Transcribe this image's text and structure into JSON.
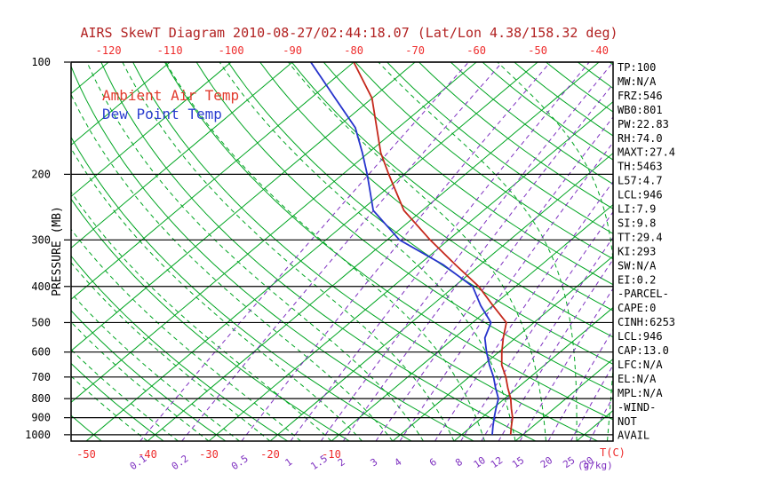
{
  "window": {
    "background": "#ffffff"
  },
  "chart_data": {
    "type": "line",
    "variant": "skewt-log-p",
    "title": "AIRS SkewT Diagram 2010-08-27/02:44:18.07 (Lat/Lon 4.38/158.32 deg)",
    "ylabel": "PRESSURE (MB)",
    "units": {
      "temp": "T(C)",
      "mixing": "(g/kg)"
    },
    "legend": [
      "Ambient Air Temp",
      "Dew Point Temp"
    ],
    "y_axis": {
      "scale": "log",
      "ticks": [
        100,
        200,
        300,
        400,
        500,
        600,
        700,
        800,
        900,
        1000
      ],
      "range": [
        100,
        1040
      ]
    },
    "x_axis_top": {
      "ticks": [
        -120,
        -110,
        -100,
        -90,
        -80,
        -70,
        -60,
        -50,
        -40
      ]
    },
    "x_axis_bottom": {
      "temp_ticks": [
        -50,
        -40,
        -30,
        -20,
        -10
      ],
      "mixing_ratio_ticks": [
        0.1,
        0.2,
        0.5,
        1,
        1.5,
        2,
        3,
        4,
        6,
        8,
        10,
        12,
        15,
        20,
        25,
        30
      ]
    },
    "series": [
      {
        "name": "Ambient Air Temp",
        "color": "#c5281c",
        "pressure_hpa": [
          1000,
          950,
          900,
          850,
          800,
          750,
          700,
          650,
          600,
          550,
          500,
          450,
          400,
          350,
          300,
          250,
          200,
          175,
          150,
          125,
          100
        ],
        "temp_c": [
          18,
          16.5,
          15,
          13,
          11,
          8.5,
          6,
          3,
          0.5,
          -2,
          -4.5,
          -10,
          -16,
          -24,
          -33,
          -43,
          -52.5,
          -58,
          -63.5,
          -70,
          -80
        ]
      },
      {
        "name": "Dew Point Temp",
        "color": "#2633cc",
        "pressure_hpa": [
          1000,
          950,
          900,
          850,
          800,
          750,
          700,
          650,
          600,
          550,
          500,
          450,
          400,
          350,
          300,
          250,
          200,
          175,
          150,
          125,
          100
        ],
        "temp_c": [
          15,
          13.5,
          12,
          10.5,
          9,
          6.5,
          4,
          1,
          -2,
          -5,
          -7,
          -12,
          -17,
          -26,
          -38,
          -48,
          -56,
          -61,
          -67,
          -76,
          -87
        ]
      }
    ]
  },
  "side_panel": {
    "lines": [
      "TP:100",
      "MW:N/A",
      "FRZ:546",
      "WB0:801",
      "PW:22.83",
      "RH:74.0",
      "MAXT:27.4",
      "TH:5463",
      "L57:4.7",
      "LCL:946",
      "LI:7.9",
      "SI:9.8",
      "TT:29.4",
      "KI:293",
      "SW:N/A",
      "EI:0.2",
      "-PARCEL-",
      "CAPE:0",
      "CINH:6253",
      "LCL:946",
      "CAP:13.0",
      "LFC:N/A",
      "EL:N/A",
      "MPL:N/A",
      "-WIND-",
      "NOT",
      "AVAIL"
    ]
  },
  "colors": {
    "isotherm_green": "#00a522",
    "mixing_purple": "#7e30c0",
    "temp_red_label": "#ee2c2c",
    "title_maroon": "#b22222",
    "axis_black": "#000000",
    "temp_curve": "#c5281c",
    "dew_curve": "#2633cc"
  }
}
